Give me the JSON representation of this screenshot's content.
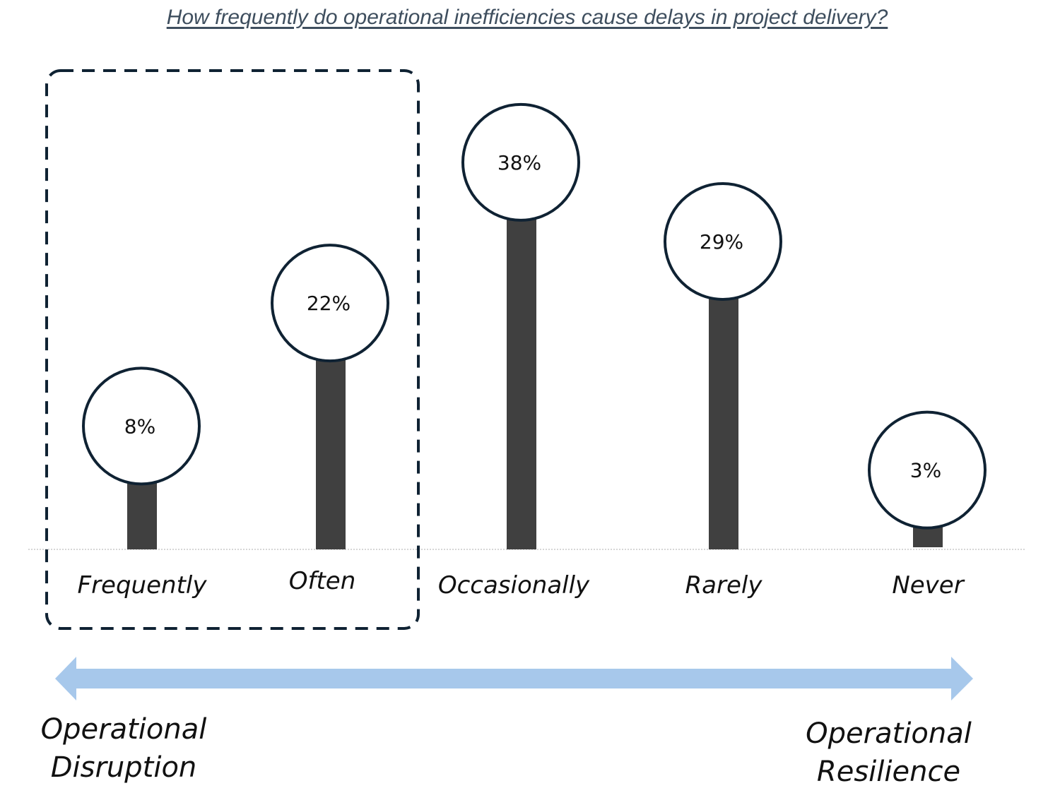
{
  "title": "How frequently do operational inefficiencies cause delays in project delivery?",
  "chart_data": {
    "type": "bar",
    "categories": [
      "Frequently",
      "Often",
      "Occasionally",
      "Rarely",
      "Never"
    ],
    "values": [
      8,
      22,
      38,
      29,
      3
    ],
    "value_labels": [
      "8%",
      "22%",
      "38%",
      "29%",
      "3%"
    ],
    "ylim": [
      0,
      40
    ],
    "highlighted_categories": [
      "Frequently",
      "Often"
    ],
    "colors": {
      "bar": "#404040",
      "bubble_stroke": "#0f2233",
      "bubble_fill": "#ffffff",
      "highlight_box": "#0f2233",
      "scale_arrow": "#a7c8eb"
    },
    "scale": {
      "left_line1": "Operational",
      "left_line2": "Disruption",
      "right_line1": "Operational",
      "right_line2": "Resilience"
    }
  }
}
